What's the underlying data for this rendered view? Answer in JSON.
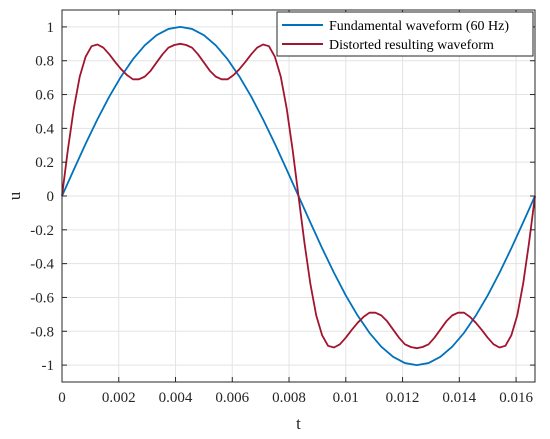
{
  "chart_data": {
    "type": "line",
    "title": "",
    "xlabel": "t",
    "ylabel": "u",
    "xlim": [
      0,
      0.016667
    ],
    "ylim": [
      -1.1,
      1.1
    ],
    "x_ticks": [
      0,
      0.002,
      0.004,
      0.006,
      0.008,
      0.01,
      0.012,
      0.014,
      0.016
    ],
    "x_tick_labels": [
      "0",
      "0.002",
      "0.004",
      "0.006",
      "0.008",
      "0.01",
      "0.012",
      "0.014",
      "0.016"
    ],
    "y_ticks": [
      1,
      0.8,
      0.6,
      0.4,
      0.2,
      0,
      -0.2,
      -0.4,
      -0.6,
      -0.8,
      -1
    ],
    "y_tick_labels": [
      "1",
      "0.8",
      "0.6",
      "0.4",
      "0.2",
      "0",
      "-0.2",
      "-0.4",
      "-0.6",
      "-0.8",
      "-1"
    ],
    "grid": true,
    "legend_position": "top-right",
    "series": [
      {
        "name": "Fundamental waveform (60 Hz)",
        "color": "#0072BD",
        "x": [
          0,
          0.000417,
          0.000833,
          0.00125,
          0.001667,
          0.002083,
          0.0025,
          0.002917,
          0.003333,
          0.00375,
          0.004167,
          0.004583,
          0.005,
          0.005417,
          0.005833,
          0.00625,
          0.006667,
          0.007083,
          0.0075,
          0.007917,
          0.008333,
          0.00875,
          0.009167,
          0.009583,
          0.01,
          0.010417,
          0.010833,
          0.01125,
          0.011667,
          0.012083,
          0.0125,
          0.012917,
          0.013333,
          0.01375,
          0.014167,
          0.014583,
          0.015,
          0.015417,
          0.015833,
          0.01625,
          0.016667
        ],
        "values": [
          0,
          0.156,
          0.309,
          0.454,
          0.588,
          0.707,
          0.809,
          0.891,
          0.951,
          0.988,
          1.0,
          0.988,
          0.951,
          0.891,
          0.809,
          0.707,
          0.588,
          0.454,
          0.309,
          0.156,
          0,
          -0.156,
          -0.309,
          -0.454,
          -0.588,
          -0.707,
          -0.809,
          -0.891,
          -0.951,
          -0.988,
          -1.0,
          -0.988,
          -0.951,
          -0.891,
          -0.809,
          -0.707,
          -0.588,
          -0.454,
          -0.309,
          -0.156,
          0
        ]
      },
      {
        "name": "Distorted resulting waveform",
        "color": "#A2142F",
        "x": [
          0,
          0.000208,
          0.000417,
          0.000625,
          0.000833,
          0.001042,
          0.00125,
          0.001458,
          0.001667,
          0.001875,
          0.002083,
          0.002292,
          0.0025,
          0.002708,
          0.002917,
          0.003125,
          0.003333,
          0.003542,
          0.00375,
          0.003958,
          0.004167,
          0.004375,
          0.004583,
          0.004792,
          0.005,
          0.005208,
          0.005417,
          0.005625,
          0.005833,
          0.006042,
          0.00625,
          0.006458,
          0.006667,
          0.006875,
          0.007083,
          0.007292,
          0.0075,
          0.007708,
          0.007917,
          0.008125,
          0.008333,
          0.008542,
          0.00875,
          0.008958,
          0.009167,
          0.009375,
          0.009583,
          0.009792,
          0.01,
          0.010208,
          0.010417,
          0.010625,
          0.010833,
          0.011042,
          0.01125,
          0.011458,
          0.011667,
          0.011875,
          0.012083,
          0.012292,
          0.0125,
          0.012708,
          0.012917,
          0.013125,
          0.013333,
          0.013542,
          0.01375,
          0.013958,
          0.014167,
          0.014375,
          0.014583,
          0.014792,
          0.015,
          0.015208,
          0.015417,
          0.015625,
          0.015833,
          0.016042,
          0.01625,
          0.016458,
          0.016667
        ],
        "values": [
          0,
          0.275,
          0.518,
          0.706,
          0.824,
          0.886,
          0.896,
          0.877,
          0.838,
          0.792,
          0.75,
          0.715,
          0.69,
          0.69,
          0.706,
          0.741,
          0.79,
          0.838,
          0.877,
          0.893,
          0.9,
          0.893,
          0.877,
          0.838,
          0.79,
          0.741,
          0.706,
          0.69,
          0.69,
          0.715,
          0.75,
          0.792,
          0.838,
          0.877,
          0.896,
          0.886,
          0.824,
          0.706,
          0.518,
          0.275,
          0,
          -0.275,
          -0.518,
          -0.706,
          -0.824,
          -0.886,
          -0.896,
          -0.877,
          -0.838,
          -0.792,
          -0.75,
          -0.715,
          -0.69,
          -0.69,
          -0.706,
          -0.741,
          -0.79,
          -0.838,
          -0.877,
          -0.893,
          -0.9,
          -0.893,
          -0.877,
          -0.838,
          -0.79,
          -0.741,
          -0.706,
          -0.69,
          -0.69,
          -0.715,
          -0.75,
          -0.792,
          -0.838,
          -0.877,
          -0.896,
          -0.886,
          -0.824,
          -0.706,
          -0.518,
          -0.275,
          0
        ]
      }
    ]
  }
}
